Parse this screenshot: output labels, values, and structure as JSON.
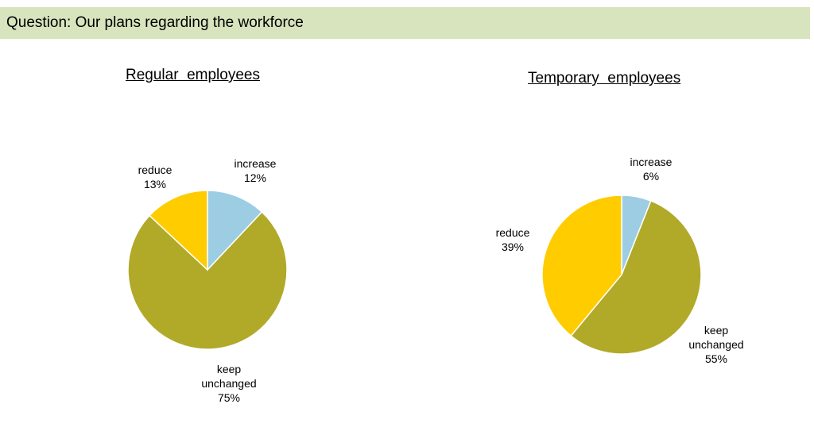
{
  "question": "Question: Our plans regarding the workforce",
  "chart_data": [
    {
      "type": "pie",
      "title": "Regular  employees",
      "slices": [
        {
          "category": "increase",
          "value": 12,
          "label": "12%",
          "color": "#9dcde3"
        },
        {
          "category": "keep unchanged",
          "line1": "keep",
          "line2": "unchanged",
          "value": 75,
          "label": "75%",
          "color": "#b1a928"
        },
        {
          "category": "reduce",
          "value": 13,
          "label": "13%",
          "color": "#ffcc00"
        }
      ],
      "legend": "none"
    },
    {
      "type": "pie",
      "title": "Temporary  employees",
      "slices": [
        {
          "category": "increase",
          "value": 6,
          "label": "6%",
          "color": "#9dcde3"
        },
        {
          "category": "keep unchanged",
          "line1": "keep",
          "line2": "unchanged",
          "value": 55,
          "label": "55%",
          "color": "#b1a928"
        },
        {
          "category": "reduce",
          "value": 39,
          "label": "39%",
          "color": "#ffcc00"
        }
      ],
      "legend": "none"
    }
  ]
}
